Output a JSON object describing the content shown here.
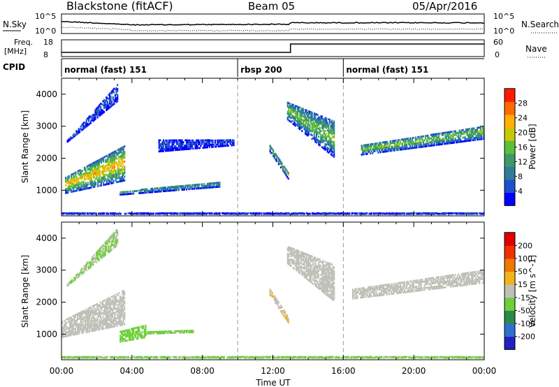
{
  "header": {
    "station": "Blackstone (fitACF)",
    "beam": "Beam 05",
    "date": "05/Apr/2016"
  },
  "noise_panel": {
    "left_label": "N.Sky",
    "right_label": "N.Search",
    "left_ticks": [
      "10^5",
      "10^0"
    ],
    "right_ticks": [
      "10^5",
      "10^0"
    ]
  },
  "freq_panel": {
    "left_label_1": "Freq.",
    "left_label_2": "[MHz]",
    "right_label": "Nave",
    "left_ticks": [
      "18",
      "8"
    ],
    "right_ticks": [
      "60",
      "0"
    ],
    "freq_steps": [
      {
        "start_hour": 0,
        "end_hour": 13.0,
        "value": 10.5
      },
      {
        "start_hour": 13.0,
        "end_hour": 24,
        "value": 15.5
      }
    ]
  },
  "cpid": {
    "label": "CPID",
    "segments": [
      {
        "start_hour": 0,
        "name": "normal (fast) 151"
      },
      {
        "start_hour": 10,
        "name": "rbsp 200"
      },
      {
        "start_hour": 16,
        "name": "normal (fast) 151"
      }
    ]
  },
  "chart_data": [
    {
      "type": "heatmap",
      "panel": "power",
      "xlabel": "Time UT",
      "ylabel": "Slant Range [km]",
      "x_ticks": [
        "00:00",
        "04:00",
        "08:00",
        "12:00",
        "16:00",
        "20:00",
        "00:00"
      ],
      "xlim_hours": [
        0,
        24
      ],
      "y_ticks": [
        "1000",
        "2000",
        "3000",
        "4000"
      ],
      "ylim_km": [
        200,
        4500
      ],
      "colorbar_label": "Power [dB]",
      "colorbar_ticks": [
        "28",
        "24",
        "20",
        "16",
        "12",
        "8",
        "4"
      ],
      "colorbar_range": [
        0,
        30
      ],
      "colors": [
        "#0000ff",
        "#1f4fd0",
        "#2f7c9a",
        "#3c9a6a",
        "#5cbf3a",
        "#c8c800",
        "#ffb000",
        "#ff6a00",
        "#ff1a00"
      ],
      "echo_regions": [
        {
          "t": [
            0.2,
            3.6
          ],
          "r0": [
            900,
            1300
          ],
          "r1": [
            1300,
            2300
          ],
          "width_km": 450,
          "core": 22
        },
        {
          "t": [
            0.3,
            3.2
          ],
          "r0": [
            2500,
            3800
          ],
          "r1": [
            2500,
            4300
          ],
          "width_km": 250,
          "core": 6
        },
        {
          "t": [
            3.3,
            9.0
          ],
          "r0": [
            850,
            1100
          ],
          "r1": [
            900,
            1200
          ],
          "width_km": 300,
          "core": 12
        },
        {
          "t": [
            5.5,
            9.8
          ],
          "r0": [
            2500,
            2500
          ],
          "r1": [
            2200,
            2400
          ],
          "width_km": 350,
          "core": 5
        },
        {
          "t": [
            11.8,
            12.9
          ],
          "r0": [
            2300,
            1400
          ],
          "r1": [
            2200,
            1300
          ],
          "width_km": 450,
          "core": 14
        },
        {
          "t": [
            12.8,
            15.5
          ],
          "r0": [
            3600,
            3000
          ],
          "r1": [
            3200,
            2000
          ],
          "width_km": 600,
          "core": 16
        },
        {
          "t": [
            17.0,
            24.0
          ],
          "r0": [
            2100,
            2600
          ],
          "r1": [
            2300,
            2900
          ],
          "width_km": 450,
          "core": 16
        },
        {
          "t": [
            0.0,
            24.0
          ],
          "r0": [
            250,
            250
          ],
          "r1": [
            250,
            250
          ],
          "width_km": 120,
          "core": 4
        }
      ],
      "reference_lines_hours": [
        10,
        16
      ]
    },
    {
      "type": "heatmap",
      "panel": "velocity",
      "xlabel": "Time UT",
      "ylabel": "Slant Range [km]",
      "x_ticks": [
        "00:00",
        "04:00",
        "08:00",
        "12:00",
        "16:00",
        "20:00",
        "00:00"
      ],
      "xlim_hours": [
        0,
        24
      ],
      "y_ticks": [
        "1000",
        "2000",
        "3000",
        "4000"
      ],
      "ylim_km": [
        200,
        4500
      ],
      "colorbar_label": "Velocity [m s^-1]",
      "colorbar_ticks": [
        "200",
        "100",
        "50",
        "15",
        "-15",
        "-50",
        "-100",
        "-200"
      ],
      "colorbar_range": [
        -250,
        250
      ],
      "colors": [
        "#2020c0",
        "#2f6fd0",
        "#2a8a4a",
        "#6ecf3a",
        "#c0c0b8",
        "#f2b41a",
        "#f07800",
        "#f03000",
        "#e00000"
      ],
      "ground_scatter_color": "#c0c0b8",
      "echo_regions": [
        {
          "t": [
            0.0,
            3.6
          ],
          "r0": [
            900,
            1300
          ],
          "r1": [
            1300,
            2300
          ],
          "width_km": 450,
          "vel": 0
        },
        {
          "t": [
            0.3,
            3.2
          ],
          "r0": [
            2500,
            3800
          ],
          "r1": [
            2500,
            4300
          ],
          "width_km": 250,
          "vel": -30
        },
        {
          "t": [
            3.3,
            4.8
          ],
          "r0": [
            750,
            900
          ],
          "r1": [
            1000,
            1200
          ],
          "width_km": 400,
          "vel": -60
        },
        {
          "t": [
            4.8,
            7.5
          ],
          "r0": [
            1000,
            1050
          ],
          "r1": [
            1050,
            1100
          ],
          "width_km": 150,
          "vel": -40
        },
        {
          "t": [
            11.8,
            12.9
          ],
          "r0": [
            2300,
            1400
          ],
          "r1": [
            2200,
            1300
          ],
          "width_km": 450,
          "vel": 20
        },
        {
          "t": [
            12.8,
            15.5
          ],
          "r0": [
            3600,
            3000
          ],
          "r1": [
            3200,
            2000
          ],
          "width_km": 600,
          "vel": 0
        },
        {
          "t": [
            16.5,
            24.0
          ],
          "r0": [
            2100,
            2600
          ],
          "r1": [
            2300,
            2900
          ],
          "width_km": 450,
          "vel": 0
        },
        {
          "t": [
            0.0,
            24.0
          ],
          "r0": [
            250,
            250
          ],
          "r1": [
            250,
            250
          ],
          "width_km": 150,
          "vel": -40
        }
      ],
      "reference_lines_hours": [
        10,
        16
      ]
    }
  ]
}
